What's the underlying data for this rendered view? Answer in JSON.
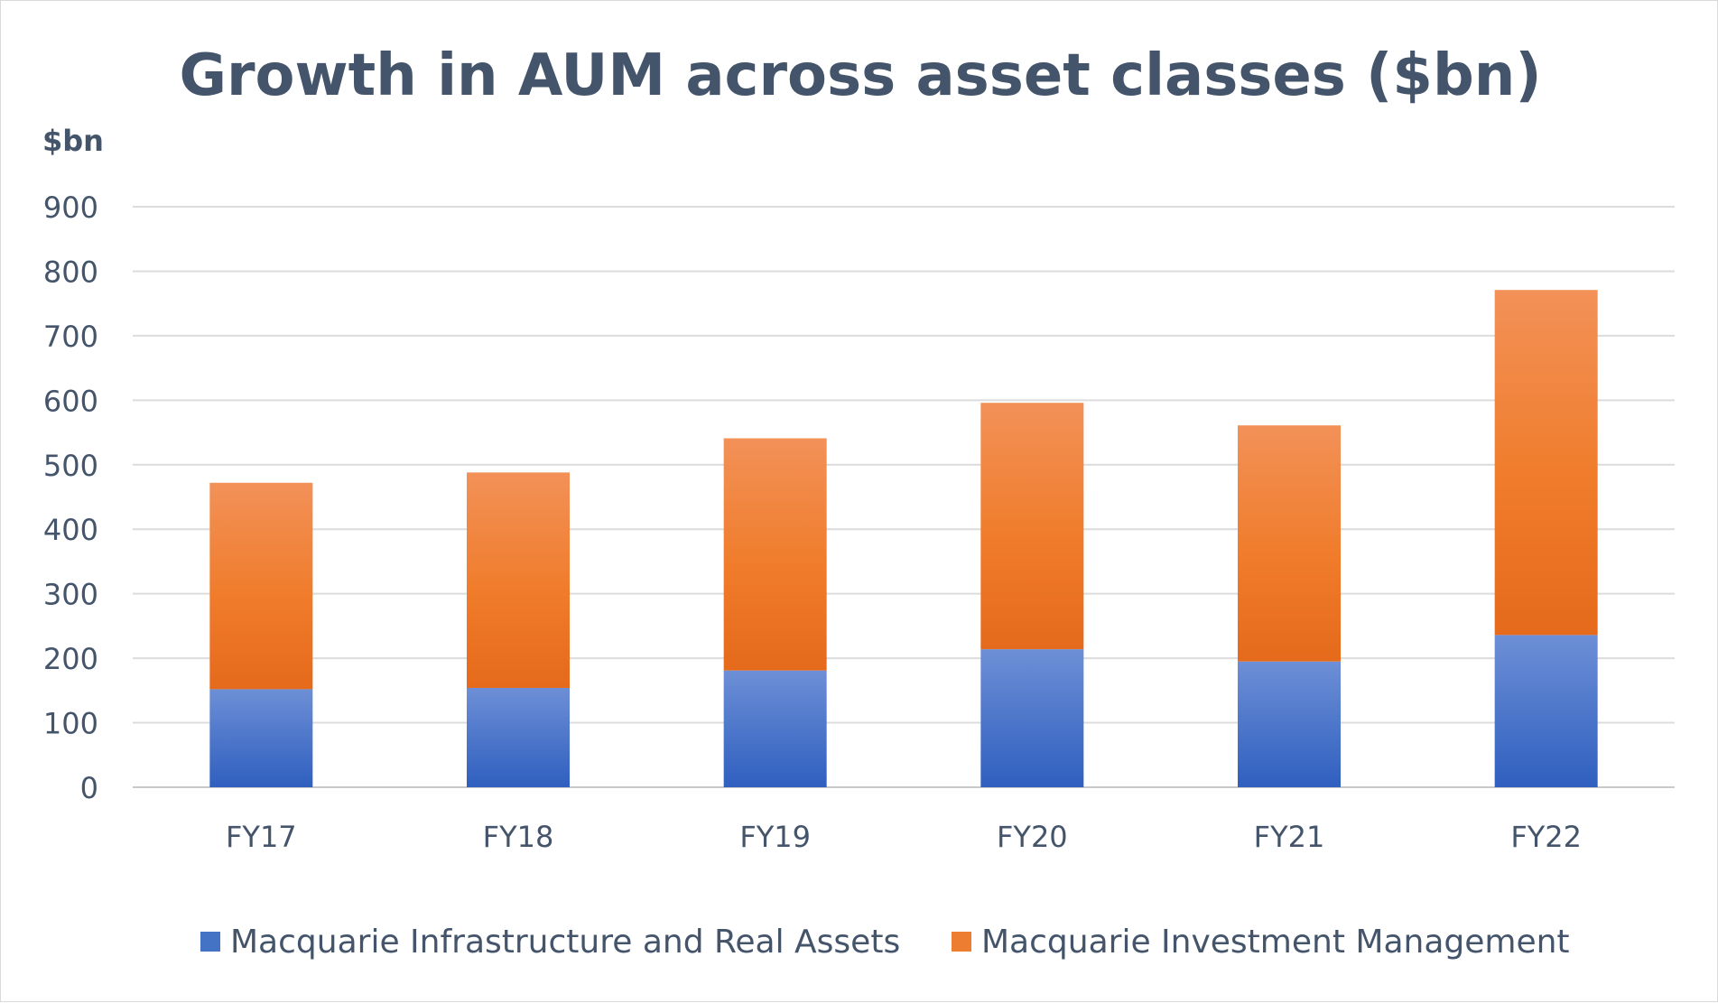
{
  "chart_data": {
    "type": "bar",
    "stacked": true,
    "title": "Growth in AUM across asset classes ($bn)",
    "ylabel": "$bn",
    "xlabel": "",
    "categories": [
      "FY17",
      "FY18",
      "FY19",
      "FY20",
      "FY21",
      "FY22"
    ],
    "series": [
      {
        "name": "Macquarie Infrastructure and Real Assets",
        "values": [
          152,
          154,
          181,
          214,
          195,
          236
        ],
        "color": "#4472c4"
      },
      {
        "name": "Macquarie Investment Management",
        "values": [
          320,
          334,
          360,
          382,
          366,
          535
        ],
        "color": "#ed7d31"
      }
    ],
    "ylim": [
      0,
      900
    ],
    "yticks": [
      "0",
      "100",
      "200",
      "300",
      "400",
      "500",
      "600",
      "700",
      "800",
      "900"
    ],
    "grid": true,
    "legend_position": "bottom"
  }
}
